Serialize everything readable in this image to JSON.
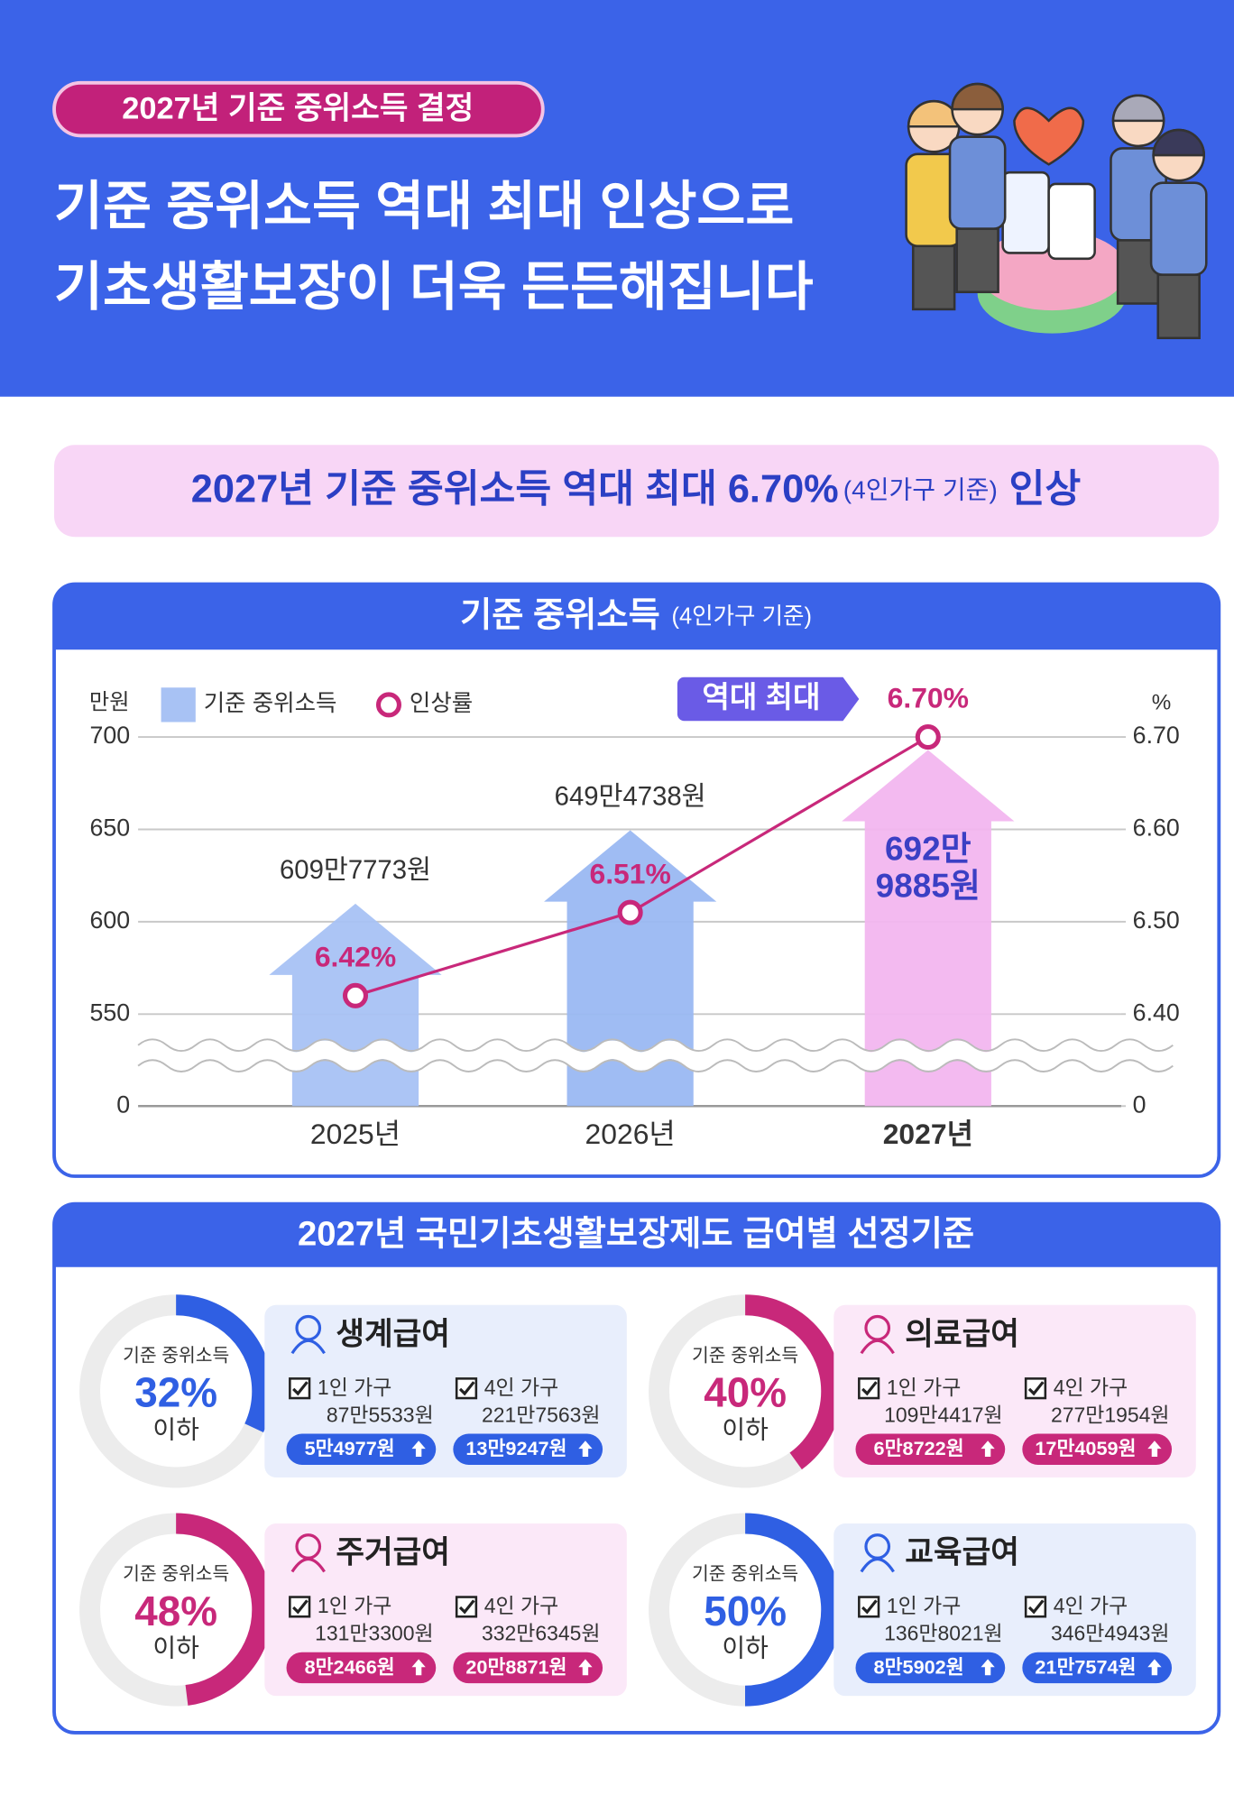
{
  "header": {
    "tag": "2027년 기준 중위소득 결정",
    "title_lines": [
      "기준 중위소득 역대 최대 인상으로",
      "기초생활보장이 더욱 든든해집니다"
    ]
  },
  "banner": {
    "parts": [
      "2027년 기준 중위소득 역대 최대 6.70%",
      "(4인가구 기준)",
      "인상"
    ]
  },
  "chart_data": {
    "type": "bar",
    "title": "기준 중위소득",
    "subtitle": "(4인가구 기준)",
    "y_unit": "만원",
    "y2_unit": "%",
    "annotation": "역대 최대",
    "categories": [
      "2025년",
      "2026년",
      "2027년"
    ],
    "series": [
      {
        "name": "기준 중위소득",
        "color": "#a8c2f4",
        "colors": [
          "#a8c2f4",
          "#9ab8f2",
          "#f2b6ef"
        ],
        "values": [
          609.7773,
          649.4738,
          692.9885
        ],
        "value_labels": [
          "609만7773원",
          "649만4738원",
          "692만 9885원"
        ]
      },
      {
        "name": "인상률",
        "type": "line",
        "axis": "y2",
        "color": "#c8287a",
        "values": [
          6.42,
          6.51,
          6.7
        ],
        "value_labels": [
          "6.42%",
          "6.51%",
          "6.70%"
        ]
      }
    ],
    "ylim": [
      550,
      700
    ],
    "yticks": [
      0,
      550,
      600,
      650,
      700
    ],
    "y2lim": [
      6.4,
      6.7
    ],
    "y2ticks": [
      0,
      {
        "value": 6.4,
        "label": "6.40"
      },
      {
        "value": 6.5,
        "label": "6.50"
      },
      {
        "value": 6.6,
        "label": "6.60"
      },
      {
        "value": 6.7,
        "label": "6.70"
      }
    ],
    "axis_break": true,
    "grid": true
  },
  "benefits": {
    "title": "2027년 국민기초생활보장제도 급여별 선정기준",
    "cards": [
      {
        "name": "생계급여",
        "criterion": "기준 중위소득",
        "percent": 32,
        "percent_label": "32%",
        "suffix": "이하",
        "color": "#2f5fe3",
        "background": "#e8eefc",
        "items": [
          {
            "household": "1인 가구",
            "amount": "87만5533원",
            "increase": "5만4977원"
          },
          {
            "household": "4인 가구",
            "amount": "221만7563원",
            "increase": "13만9247원"
          }
        ]
      },
      {
        "name": "의료급여",
        "criterion": "기준 중위소득",
        "percent": 40,
        "percent_label": "40%",
        "suffix": "이하",
        "color": "#c8287a",
        "background": "#fbe8f8",
        "items": [
          {
            "household": "1인 가구",
            "amount": "109만4417원",
            "increase": "6만8722원"
          },
          {
            "household": "4인 가구",
            "amount": "277만1954원",
            "increase": "17만4059원"
          }
        ]
      },
      {
        "name": "주거급여",
        "criterion": "기준 중위소득",
        "percent": 48,
        "percent_label": "48%",
        "suffix": "이하",
        "color": "#c8287a",
        "background": "#fbe8f8",
        "items": [
          {
            "household": "1인 가구",
            "amount": "131만3300원",
            "increase": "8만2466원"
          },
          {
            "household": "4인 가구",
            "amount": "332만6345원",
            "increase": "20만8871원"
          }
        ]
      },
      {
        "name": "교육급여",
        "criterion": "기준 중위소득",
        "percent": 50,
        "percent_label": "50%",
        "suffix": "이하",
        "color": "#2f5fe3",
        "background": "#e8eefc",
        "items": [
          {
            "household": "1인 가구",
            "amount": "136만8021원",
            "increase": "8만5902원"
          },
          {
            "household": "4인 가구",
            "amount": "346만4943원",
            "increase": "21만7574원"
          }
        ]
      }
    ]
  }
}
